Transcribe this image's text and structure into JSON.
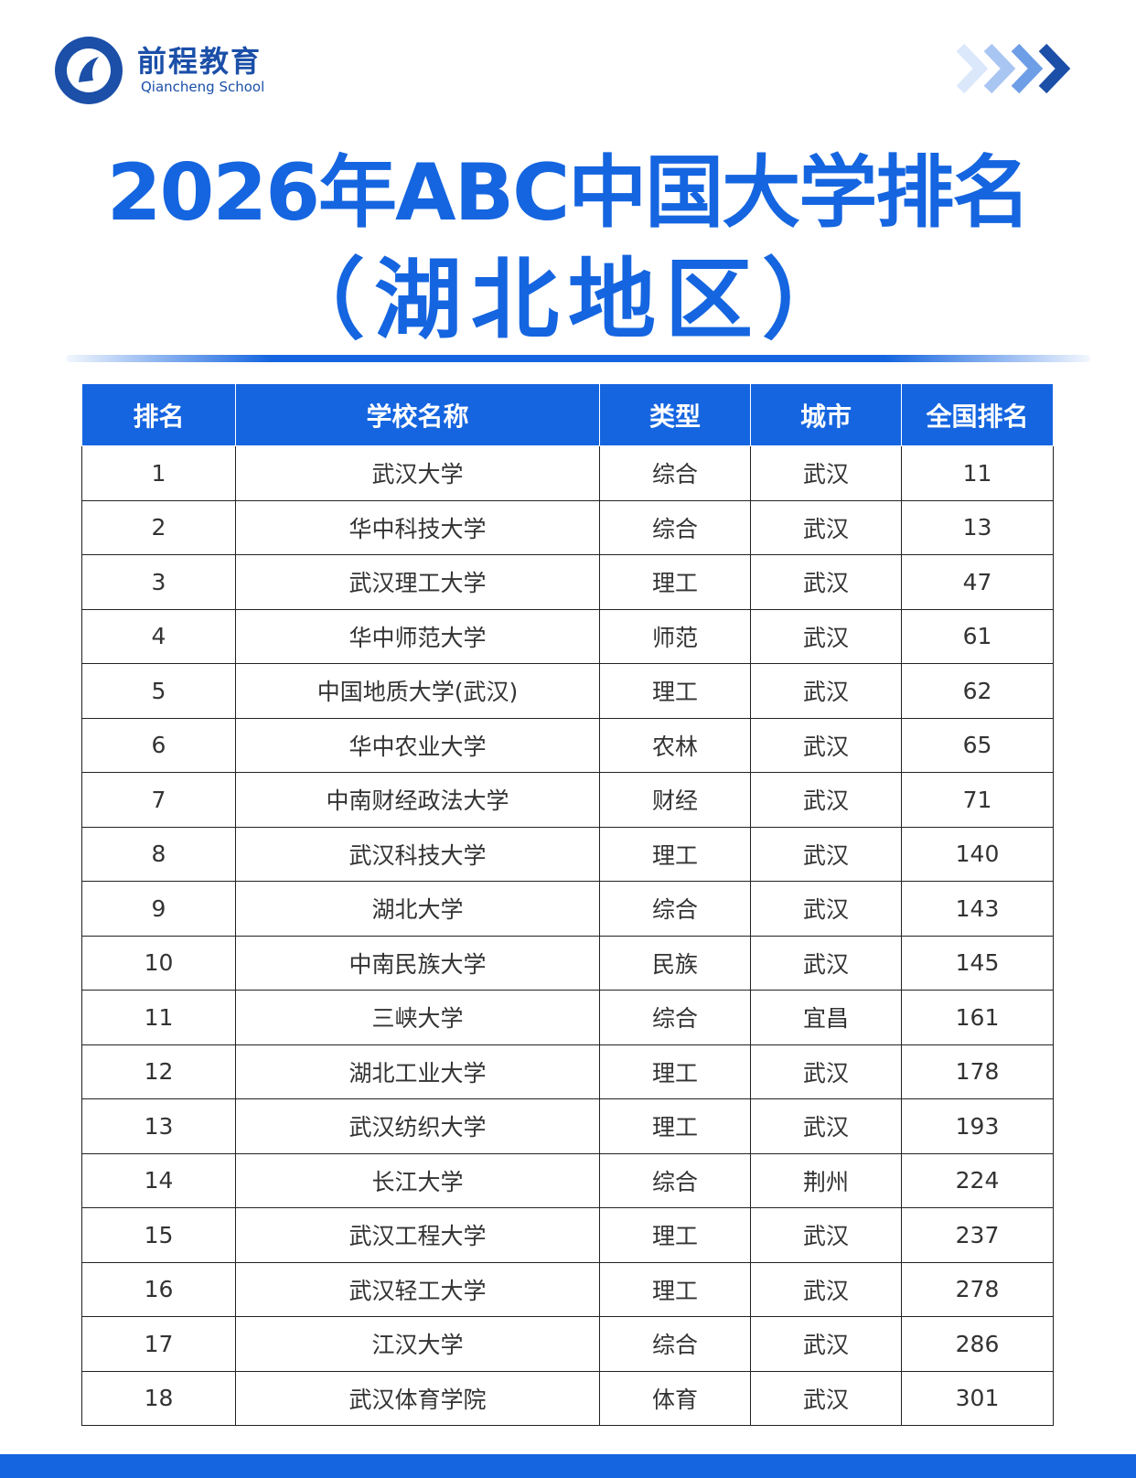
{
  "header": {
    "brand": "前程教育",
    "brand_en": "Qiancheng School",
    "title": "2026年ABC中国大学排名",
    "subtitle": "（湖北地区）"
  },
  "table": {
    "columns": [
      "排名",
      "学校名称",
      "类型",
      "城市",
      "全国排名"
    ],
    "rows": [
      [
        1,
        "武汉大学",
        "综合",
        "武汉",
        11
      ],
      [
        2,
        "华中科技大学",
        "综合",
        "武汉",
        13
      ],
      [
        3,
        "武汉理工大学",
        "理工",
        "武汉",
        47
      ],
      [
        4,
        "华中师范大学",
        "师范",
        "武汉",
        61
      ],
      [
        5,
        "中国地质大学(武汉)",
        "理工",
        "武汉",
        62
      ],
      [
        6,
        "华中农业大学",
        "农林",
        "武汉",
        65
      ],
      [
        7,
        "中南财经政法大学",
        "财经",
        "武汉",
        71
      ],
      [
        8,
        "武汉科技大学",
        "理工",
        "武汉",
        140
      ],
      [
        9,
        "湖北大学",
        "综合",
        "武汉",
        143
      ],
      [
        10,
        "中南民族大学",
        "民族",
        "武汉",
        145
      ],
      [
        11,
        "三峡大学",
        "综合",
        "宜昌",
        161
      ],
      [
        12,
        "湖北工业大学",
        "理工",
        "武汉",
        178
      ],
      [
        13,
        "武汉纺织大学",
        "理工",
        "武汉",
        193
      ],
      [
        14,
        "长江大学",
        "综合",
        "荆州",
        224
      ],
      [
        15,
        "武汉工程大学",
        "理工",
        "武汉",
        237
      ],
      [
        16,
        "武汉轻工大学",
        "理工",
        "武汉",
        278
      ],
      [
        17,
        "江汉大学",
        "综合",
        "武汉",
        286
      ],
      [
        18,
        "武汉体育学院",
        "体育",
        "武汉",
        301
      ]
    ]
  }
}
